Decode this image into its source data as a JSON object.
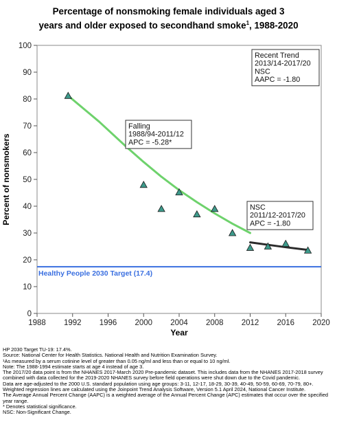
{
  "chart_data": {
    "type": "scatter",
    "title": "Percentage of nonsmoking female individuals aged 3 years and older exposed to secondhand smoke",
    "title_sup": "1",
    "title_suffix": ", 1988-2020",
    "xlabel": "Year",
    "ylabel": "Percent of nonsmokers",
    "xlim": [
      1988,
      2020
    ],
    "ylim": [
      0,
      100
    ],
    "xticks": [
      1988,
      1992,
      1996,
      2000,
      2004,
      2008,
      2012,
      2016,
      2020
    ],
    "yticks": [
      0,
      10,
      20,
      30,
      40,
      50,
      60,
      70,
      80,
      90,
      100
    ],
    "grid": false,
    "observed": {
      "x": [
        1991.5,
        2000,
        2002,
        2004,
        2006,
        2008,
        2010,
        2012,
        2014,
        2016,
        2018.5
      ],
      "y": [
        81.2,
        48,
        39,
        45.2,
        37,
        39,
        30,
        24.5,
        25,
        26,
        23.5
      ],
      "color": "#3d9a8b"
    },
    "trend_segments": [
      {
        "x": [
          1991.5,
          1995,
          1998,
          2000,
          2002,
          2004,
          2006,
          2008,
          2010,
          2012
        ],
        "y": [
          81.2,
          71.5,
          62.3,
          56.5,
          51,
          46,
          41.5,
          37.3,
          33.5,
          30
        ],
        "color": "#6ed26c"
      },
      {
        "x": [
          2012,
          2014,
          2016,
          2018.5
        ],
        "y": [
          26.5,
          25.6,
          24.7,
          23.7
        ],
        "color": "#2b2b2b"
      }
    ],
    "target": {
      "value": 17.4,
      "label": "Healthy People 2030 Target (17.4)",
      "color": "#3a6fe0"
    },
    "annotations": [
      {
        "lines": [
          "Falling",
          "1988/94-2011/12",
          "APC = -5.28*"
        ]
      },
      {
        "lines": [
          "NSC",
          "2011/12-2017/20",
          "APC = -1.80"
        ]
      },
      {
        "lines": [
          "Recent Trend",
          "2013/14-2017/20",
          "NSC",
          "AAPC = -1.80"
        ]
      }
    ]
  },
  "footnotes": [
    "HP 2030 Target TU-19: 17.4%.",
    "Source: National Center for Health Statistics. National Health and Nutrition Examination Survey.",
    "¹As measured by a serum cotinine level of greater than 0.05 ng/ml and less than or equal to 10 ng/ml.",
    "Note: The 1988-1994 estimate starts at age 4 instead of age 3.",
    "The 2017/20 data point is from the NHANES 2017-March 2020 Pre-pandemic dataset. This includes data from the NHANES 2017-2018 survey combined with data collected for the 2019-2020 NHANES survey before field operations were shut down due to the Covid pandemic.",
    "Data are age-adjusted to the 2000 U.S. standard population using age groups: 3-11, 12-17, 18-29, 30-39, 40-49, 50-59, 60-69, 70-79, 80+.",
    "Weighted regression lines are calculated using the Joinpoint Trend Analysis Software, Version 5.1 April 2024, National Cancer Institute.",
    "The Average Annual Percent Change (AAPC) is a weighted average of the Annual Percent Change (APC) estimates that occur over the specified year range.",
    "* Denotes statistical significance.",
    "NSC: Non-Significant Change."
  ]
}
